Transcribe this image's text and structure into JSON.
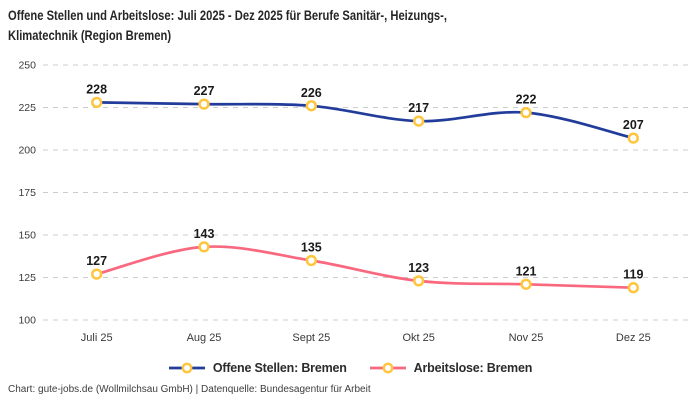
{
  "chart_data": {
    "type": "line",
    "title": "Offene Stellen und Arbeitslose: Juli 2025 - Dez 2025 für Berufe Sanitär-, Heizungs-, Klimatechnik (Region Bremen)",
    "title_lines": [
      "Offene Stellen und Arbeitslose: Juli 2025 - Dez 2025 für Berufe Sanitär-, Heizungs-,",
      "Klimatechnik (Region Bremen)"
    ],
    "categories": [
      "Juli 25",
      "Aug 25",
      "Sept 25",
      "Okt 25",
      "Nov 25",
      "Dez 25"
    ],
    "series": [
      {
        "name": "Offene Stellen: Bremen",
        "values": [
          228,
          227,
          226,
          217,
          222,
          207
        ],
        "color": "#223C9B"
      },
      {
        "name": "Arbeitslose: Bremen",
        "values": [
          127,
          143,
          135,
          123,
          121,
          119
        ],
        "color": "#F9687F"
      }
    ],
    "marker_style": {
      "stroke": "#FFC53D",
      "fill": "#FFFFFF"
    },
    "y_ticks": [
      250,
      225,
      200,
      175,
      150,
      125,
      100
    ],
    "ylim": [
      100,
      250
    ],
    "xlabel": "",
    "ylabel": "",
    "grid": "horizontal-dashed",
    "grid_color": "#CCCCCC",
    "axis_text_color": "#3a3a3a",
    "value_label_color": "#1a1a1a",
    "legend_position": "bottom",
    "curve": "smooth"
  },
  "footer": {
    "credit": "Chart: gute-jobs.de (Wollmilchsau GmbH) | Datenquelle: Bundesagentur für Arbeit"
  }
}
